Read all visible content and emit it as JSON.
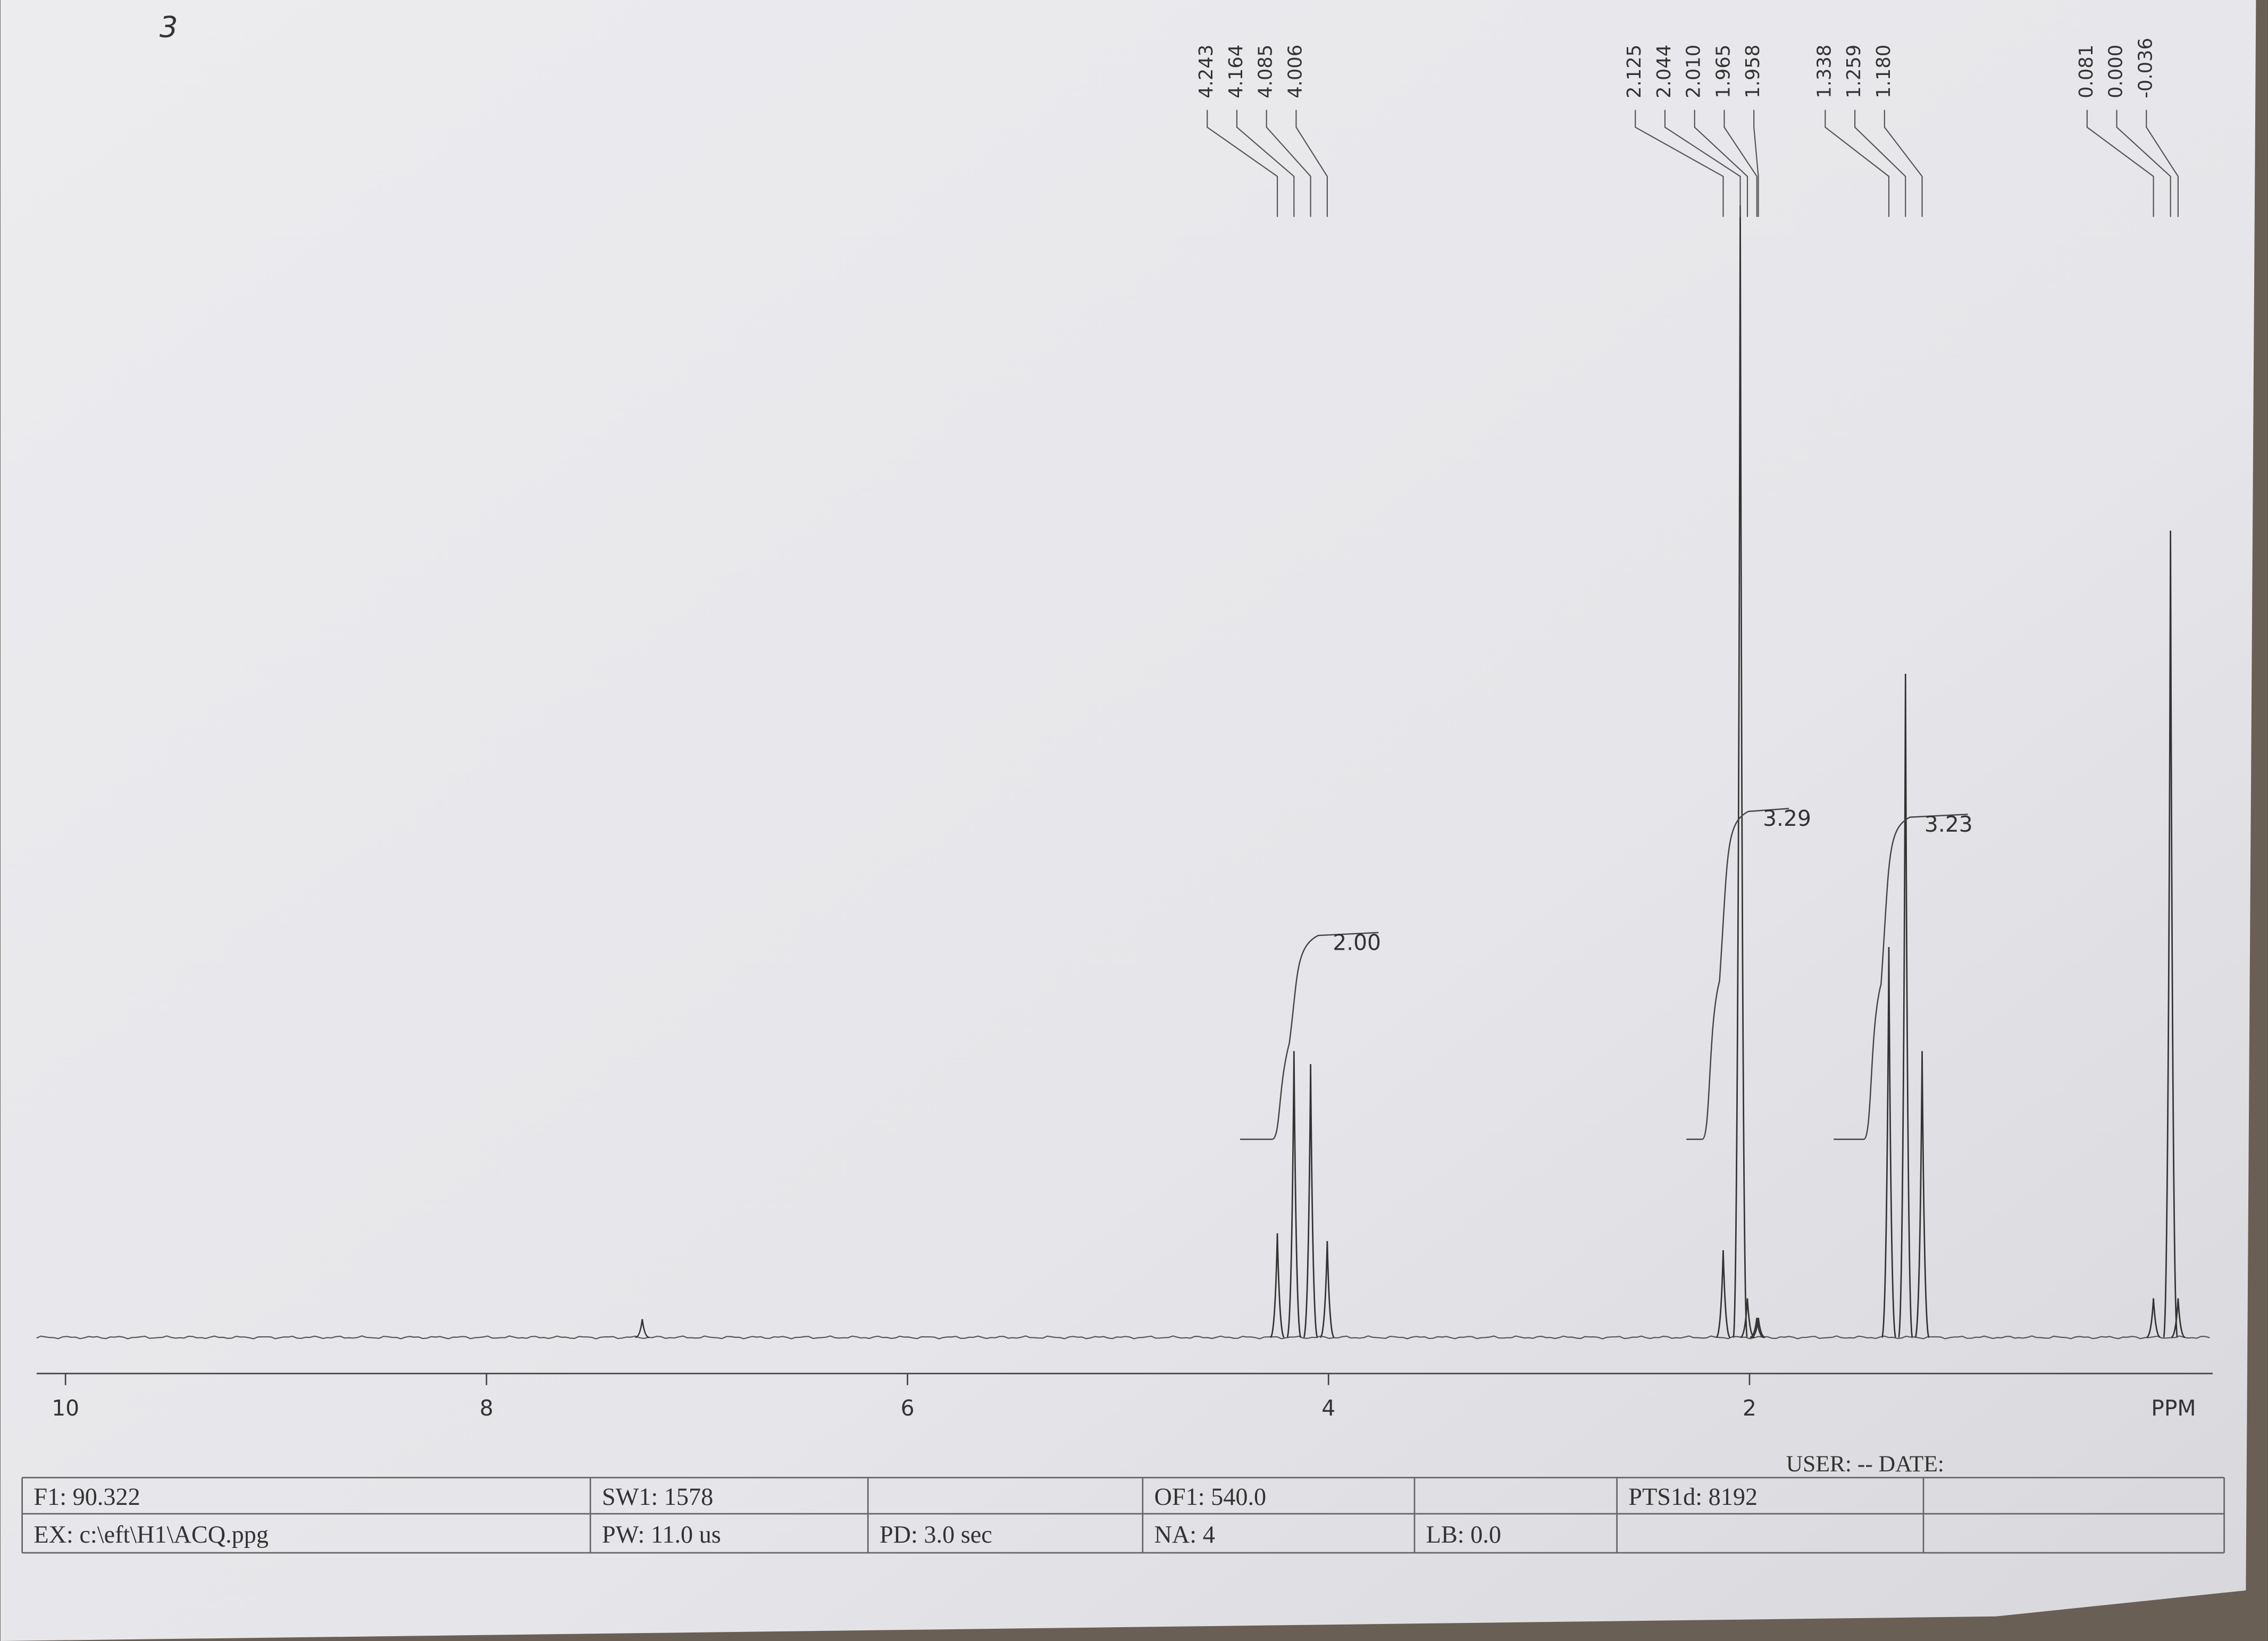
{
  "page_mark": "3",
  "chart_data": {
    "type": "nmr",
    "x_label": "PPM",
    "xlim": [
      10.14,
      -0.2
    ],
    "xticks": [
      10,
      8,
      6,
      4,
      2
    ],
    "ylim": [
      0,
      100
    ],
    "peaks": {
      "x": [
        7.26,
        {
          "value": 4.243,
          "label": "4.243"
        },
        {
          "value": 4.164,
          "label": "4.164"
        },
        {
          "value": 4.085,
          "label": "4.085"
        },
        {
          "value": 4.006,
          "label": "4.006"
        },
        {
          "value": 2.125,
          "label": "2.125"
        },
        {
          "value": 2.044,
          "label": "2.044"
        },
        {
          "value": 2.01,
          "label": "2.010"
        },
        {
          "value": 1.965,
          "label": "1.965"
        },
        {
          "value": 1.958,
          "label": "1.958"
        },
        {
          "value": 1.338,
          "label": "1.338"
        },
        {
          "value": 1.259,
          "label": "1.259"
        },
        {
          "value": 1.18,
          "label": "1.180"
        },
        {
          "value": 0.081,
          "label": "0.081"
        },
        {
          "value": 0.0,
          "label": "0.000"
        },
        {
          "value": -0.036,
          "label": "-0.036"
        }
      ],
      "values": [
        1.4,
        8,
        22,
        21,
        7.4,
        6.7,
        87,
        3,
        1.5,
        1.5,
        30,
        51,
        22,
        3,
        62,
        3
      ]
    },
    "integrals": [
      {
        "value": 2.0,
        "label": "2.00",
        "range": [
          4.42,
          3.9
        ]
      },
      {
        "value": 3.29,
        "label": "3.29",
        "range": [
          2.3,
          1.95
        ]
      },
      {
        "value": 3.23,
        "label": "3.23",
        "range": [
          1.6,
          1.1
        ]
      }
    ]
  },
  "footer": {
    "user_line": "USER:  -- DATE:",
    "rows": [
      [
        "F1: 90.322",
        "SW1: 1578",
        "",
        "OF1: 540.0",
        "",
        "PTS1d: 8192",
        ""
      ],
      [
        "EX: c:\\eft\\H1\\ACQ.ppg",
        "PW: 11.0 us",
        "PD: 3.0  sec",
        "NA: 4",
        "LB: 0.0",
        "",
        ""
      ]
    ]
  }
}
